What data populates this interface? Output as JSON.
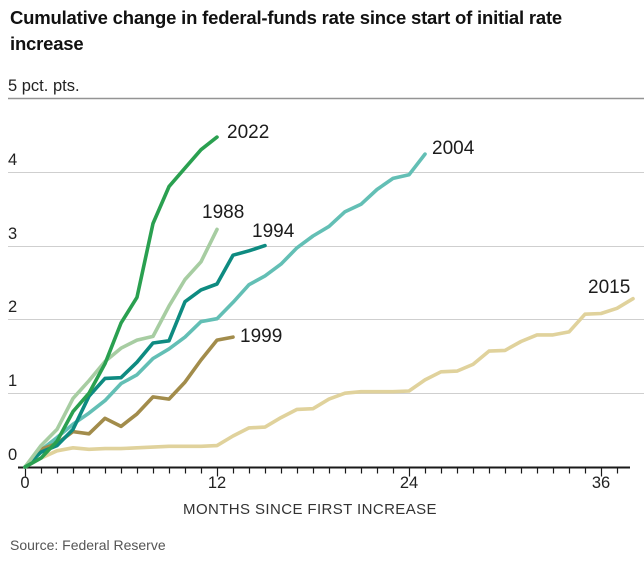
{
  "header": {
    "title": "Cumulative change in federal-funds rate since start of initial rate increase"
  },
  "chart_data": {
    "type": "line",
    "title": "Cumulative change in federal-funds rate since start of initial rate increase",
    "xlabel": "MONTHS SINCE FIRST INCREASE",
    "ylabel": "pct. pts.",
    "unit_label": "5 pct. pts.",
    "xlim": [
      0,
      38.5
    ],
    "ylim": [
      0,
      5
    ],
    "grid": "horizontal",
    "legend_position": "end-of-line labels",
    "x_unit": "months since first increase",
    "yticks": [
      {
        "value": 5,
        "label": "5 pct. pts."
      },
      {
        "value": 4,
        "label": "4"
      },
      {
        "value": 3,
        "label": "3"
      },
      {
        "value": 2,
        "label": "2"
      },
      {
        "value": 1,
        "label": "1"
      },
      {
        "value": 0,
        "label": "0"
      }
    ],
    "xticks": [
      {
        "value": 0,
        "label": "0"
      },
      {
        "value": 12,
        "label": "12"
      },
      {
        "value": 24,
        "label": "24"
      },
      {
        "value": 36,
        "label": "36"
      }
    ],
    "series": [
      {
        "name": "2015",
        "color": "#e0d29c",
        "x_start_month": 0,
        "values": [
          0,
          0.12,
          0.22,
          0.26,
          0.24,
          0.25,
          0.25,
          0.26,
          0.27,
          0.28,
          0.28,
          0.28,
          0.29,
          0.42,
          0.53,
          0.54,
          0.67,
          0.78,
          0.79,
          0.92,
          1.0,
          1.02,
          1.02,
          1.02,
          1.03,
          1.18,
          1.29,
          1.3,
          1.39,
          1.57,
          1.58,
          1.7,
          1.79,
          1.79,
          1.83,
          2.07,
          2.08,
          2.15,
          2.28
        ]
      },
      {
        "name": "2004",
        "color": "#63bfb5",
        "x_start_month": 0,
        "values": [
          0,
          0.23,
          0.4,
          0.58,
          0.73,
          0.9,
          1.13,
          1.25,
          1.47,
          1.6,
          1.76,
          1.97,
          2.01,
          2.23,
          2.47,
          2.59,
          2.75,
          2.97,
          3.13,
          3.26,
          3.46,
          3.56,
          3.76,
          3.91,
          3.96,
          4.24
        ]
      },
      {
        "name": "1999",
        "color": "#a28c4b",
        "x_start_month": 0,
        "values": [
          0,
          0.24,
          0.32,
          0.48,
          0.45,
          0.66,
          0.55,
          0.72,
          0.95,
          0.92,
          1.15,
          1.45,
          1.72,
          1.76
        ]
      },
      {
        "name": "1994",
        "color": "#0e8b81",
        "x_start_month": 0,
        "values": [
          0,
          0.2,
          0.29,
          0.51,
          0.96,
          1.2,
          1.21,
          1.42,
          1.68,
          1.71,
          2.24,
          2.4,
          2.48,
          2.87,
          2.93,
          3.0
        ]
      },
      {
        "name": "1988",
        "color": "#a7cda2",
        "x_start_month": 0,
        "values": [
          0,
          0.29,
          0.51,
          0.93,
          1.17,
          1.43,
          1.61,
          1.72,
          1.77,
          2.18,
          2.54,
          2.78,
          3.22
        ]
      },
      {
        "name": "2022",
        "color": "#2aa050",
        "x_start_month": 0,
        "values": [
          0,
          0.12,
          0.35,
          0.75,
          1.0,
          1.4,
          1.95,
          2.3,
          3.3,
          3.8,
          4.05,
          4.3,
          4.47
        ]
      }
    ]
  },
  "footer": {
    "source": "Source: Federal Reserve"
  }
}
